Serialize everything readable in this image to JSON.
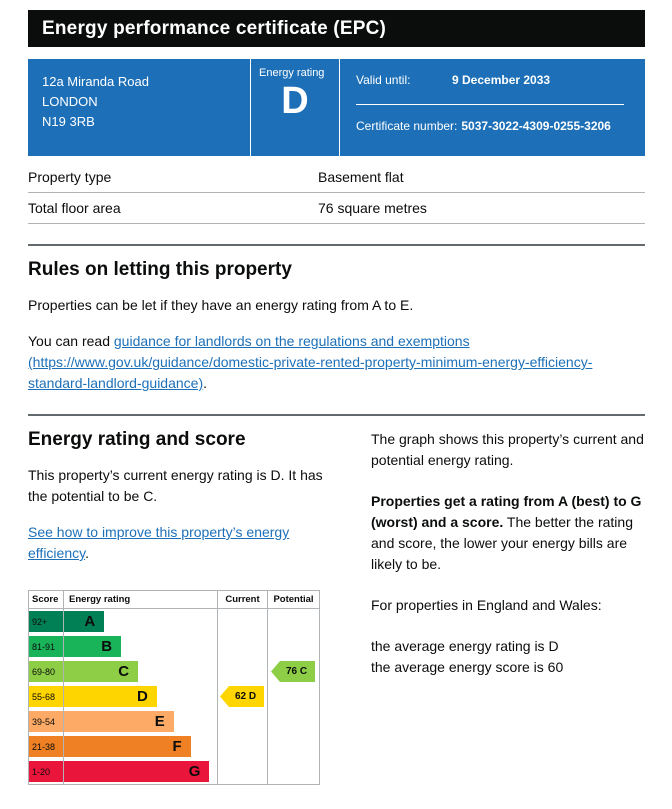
{
  "header": {
    "title": "Energy performance certificate (EPC)"
  },
  "summary": {
    "address_line1": "12a Miranda Road",
    "address_line2": "LONDON",
    "address_line3": "N19 3RB",
    "rating_label": "Energy rating",
    "rating_value": "D",
    "valid_until_label": "Valid until:",
    "valid_until_value": "9 December 2033",
    "cert_number_label": "Certificate number:",
    "cert_number_value": "5037-3022-4309-0255-3206",
    "box_color": "#1d70b8"
  },
  "property": {
    "rows": [
      {
        "label": "Property type",
        "value": "Basement flat"
      },
      {
        "label": "Total floor area",
        "value": "76 square metres"
      }
    ]
  },
  "rules": {
    "heading": "Rules on letting this property",
    "para1": "Properties can be let if they have an energy rating from A to E.",
    "para2_prefix": "You can read ",
    "link_text": "guidance for landlords on the regulations and exemptions (https://www.gov.uk/guidance/domestic-private-rented-property-minimum-energy-efficiency-standard-landlord-guidance)",
    "para2_suffix": "."
  },
  "score_section": {
    "heading": "Energy rating and score",
    "left_para": "This property’s current energy rating is D. It has the potential to be C.",
    "left_link": "See how to improve this property’s energy efficiency",
    "left_link_suffix": ".",
    "right_para1": "The graph shows this property’s current and potential energy rating.",
    "right_bold": "Properties get a rating from A (best) to G (worst) and a score.",
    "right_rest": " The better the rating and score, the lower your energy bills are likely to be.",
    "right_para3": "For properties in England and Wales:",
    "avg_rating_line": "the average energy rating is D",
    "avg_score_line": "the average energy score is 60"
  },
  "chart_data": {
    "type": "epc-rating-bands",
    "headers": [
      "Score",
      "Energy rating",
      "Current",
      "Potential"
    ],
    "bands": [
      {
        "score": "92+",
        "letter": "A",
        "color": "#008054",
        "width_pct": 40
      },
      {
        "score": "81-91",
        "letter": "B",
        "color": "#19b459",
        "width_pct": 49
      },
      {
        "score": "69-80",
        "letter": "C",
        "color": "#8dce46",
        "width_pct": 58
      },
      {
        "score": "55-68",
        "letter": "D",
        "color": "#ffd500",
        "width_pct": 68
      },
      {
        "score": "39-54",
        "letter": "E",
        "color": "#fcaa65",
        "width_pct": 77
      },
      {
        "score": "21-38",
        "letter": "F",
        "color": "#ef8023",
        "width_pct": 86
      },
      {
        "score": "1-20",
        "letter": "G",
        "color": "#e9153b",
        "width_pct": 96
      }
    ],
    "current": {
      "score": 62,
      "letter": "D",
      "band_index": 3,
      "color": "#ffd500"
    },
    "potential": {
      "score": 76,
      "letter": "C",
      "band_index": 2,
      "color": "#8dce46"
    }
  }
}
